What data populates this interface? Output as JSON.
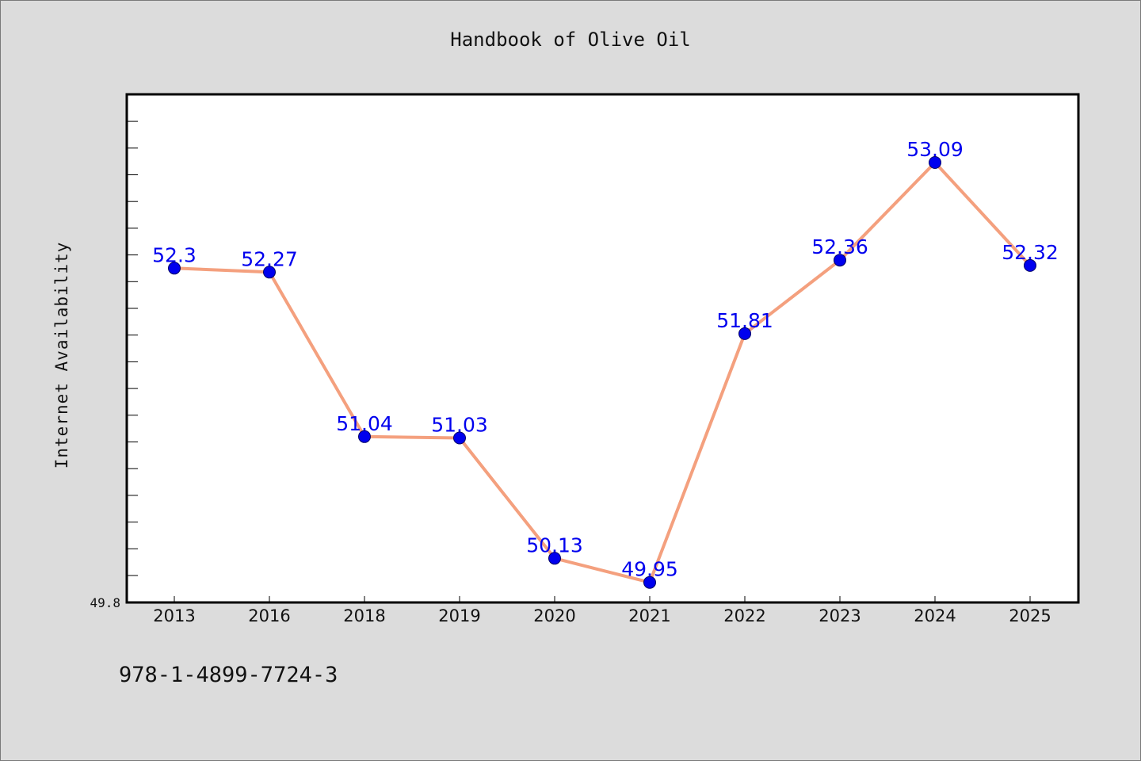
{
  "title": "Handbook of Olive Oil",
  "footer": {
    "isbn": "978-1-4899-7724-3"
  },
  "colors": {
    "background": "#dcdcdc",
    "plot_background": "#ffffff",
    "line": "#f4a07e",
    "marker": "#0000ee",
    "data_label": "#0000ee"
  },
  "chart_data": {
    "type": "line",
    "categories": [
      "2013",
      "2016",
      "2018",
      "2019",
      "2020",
      "2021",
      "2022",
      "2023",
      "2024",
      "2025"
    ],
    "series": [
      {
        "values": [
          52.3,
          52.27,
          51.04,
          51.03,
          50.13,
          49.95,
          51.81,
          52.36,
          53.09,
          52.32
        ]
      }
    ],
    "data_labels": [
      "52.3",
      "52.27",
      "51.04",
      "51.03",
      "50.13",
      "49.95",
      "51.81",
      "52.36",
      "53.09",
      "52.32"
    ],
    "ylabel": "Internet Availability",
    "xlabel": "",
    "y_tick_labels": [
      "49.8"
    ],
    "ylim": [
      49.8,
      53.6
    ],
    "grid": false,
    "legend": "none"
  }
}
